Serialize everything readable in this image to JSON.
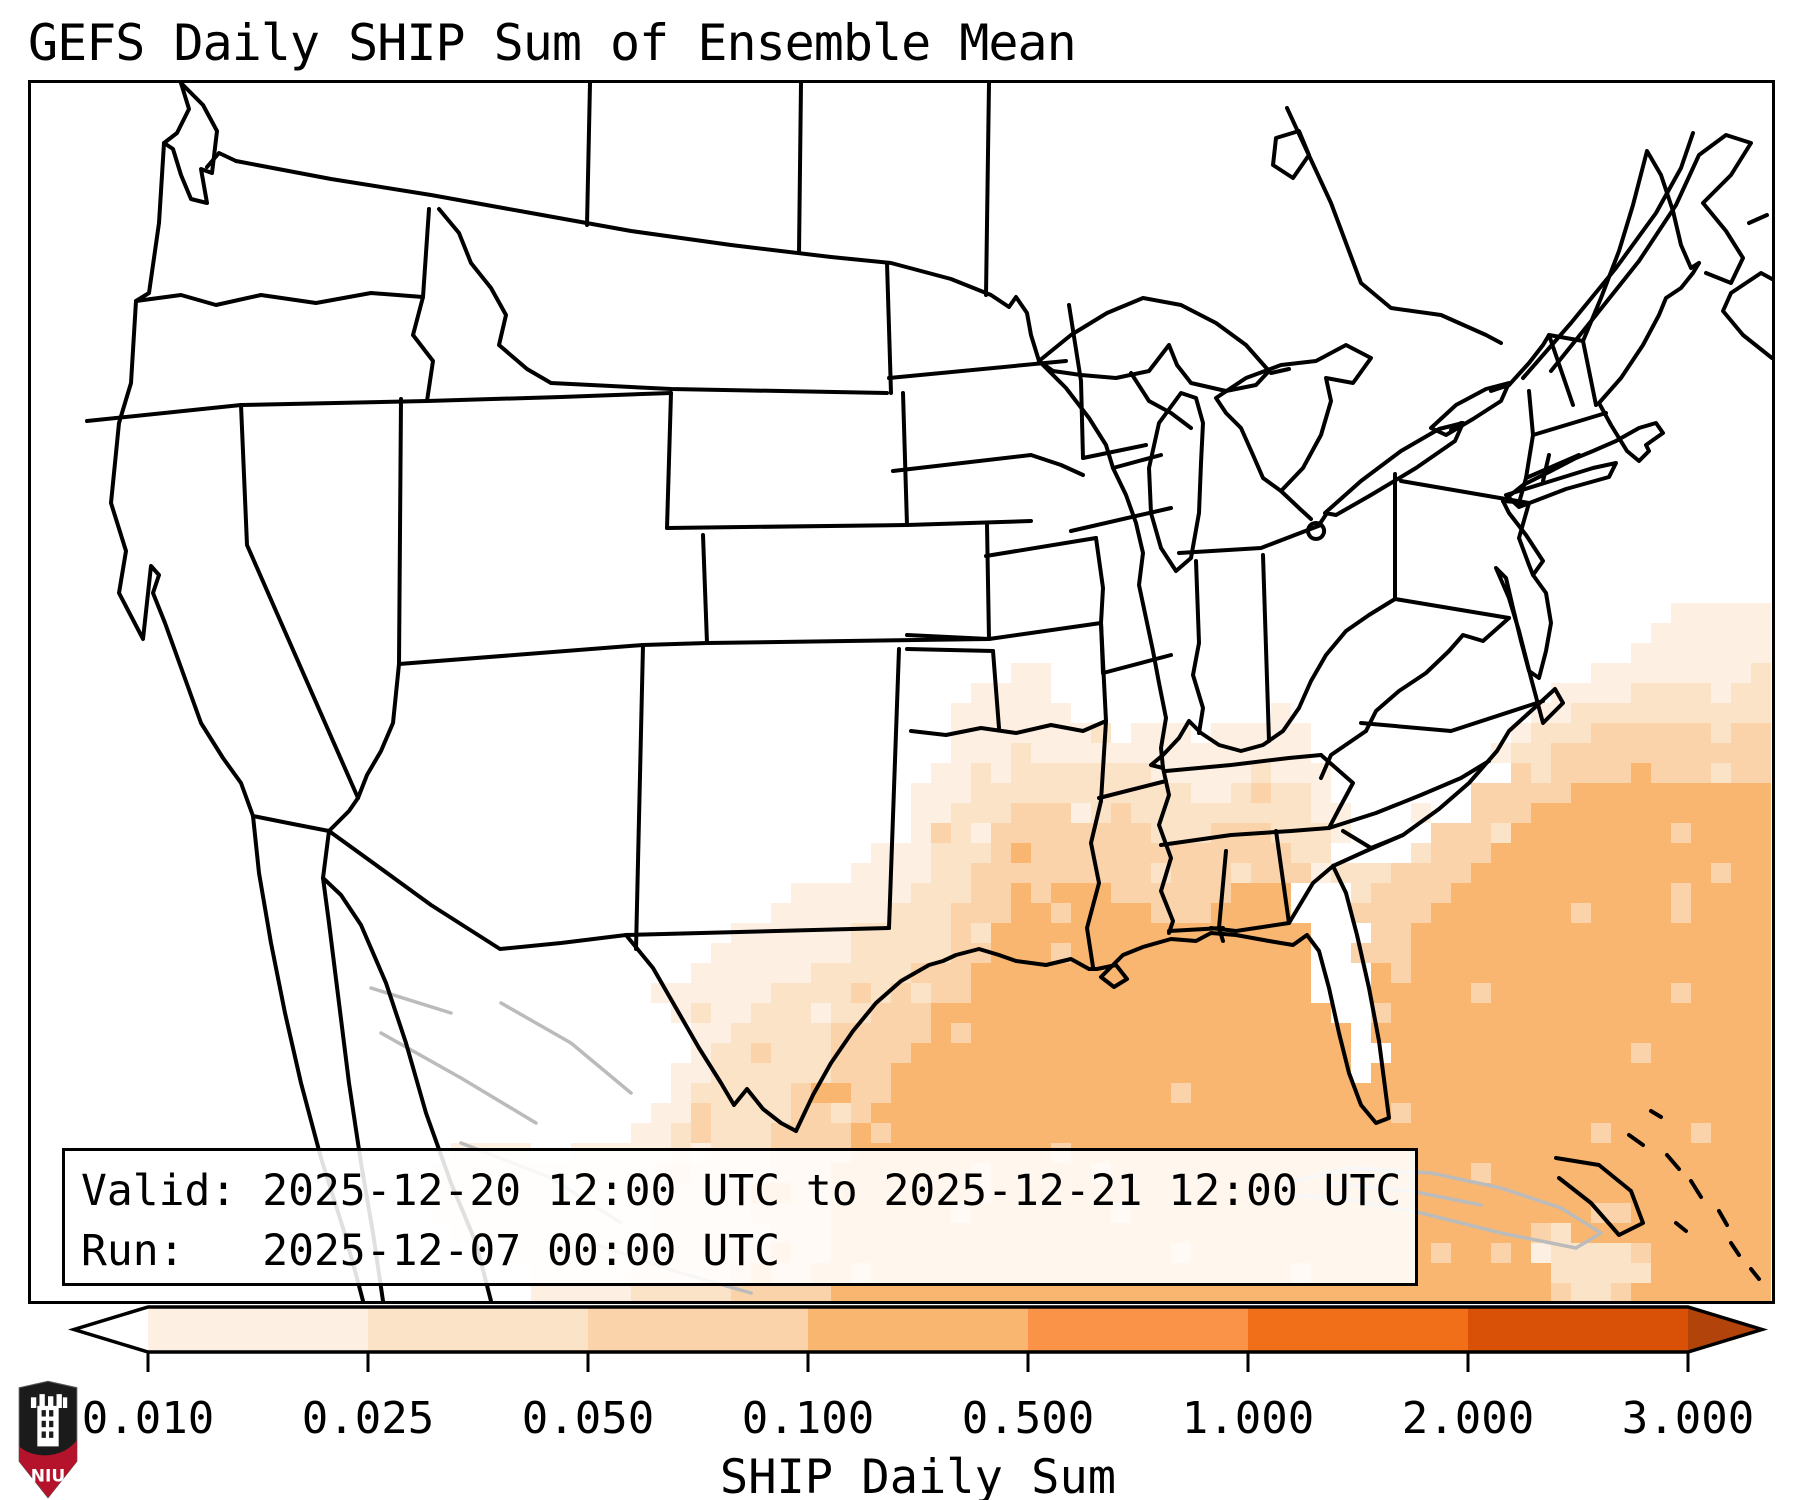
{
  "title": "GEFS Daily SHIP Sum of Ensemble Mean",
  "info_box": {
    "valid_line": "Valid: 2025-12-20 12:00 UTC to 2025-12-21 12:00 UTC",
    "run_line": "Run:   2025-12-07 00:00 UTC"
  },
  "colorbar": {
    "label": "SHIP Daily Sum",
    "tick_labels": [
      "0.010",
      "0.025",
      "0.050",
      "0.100",
      "0.500",
      "1.000",
      "2.000",
      "3.000"
    ],
    "boundaries": [
      0.01,
      0.025,
      0.05,
      0.1,
      0.5,
      1.0,
      2.0,
      3.0
    ],
    "segment_colors": [
      "#fdf0e3",
      "#fbe3c8",
      "#fad3ab",
      "#f9b671",
      "#fa9347",
      "#f26f19",
      "#d85106"
    ],
    "under_color": "#ffffff",
    "over_color": "#b2430b",
    "outline_color": "#000000",
    "extend": "both"
  },
  "map": {
    "background_color": "#ffffff",
    "border_color": "#000000",
    "foreign_line_color": "#bbbbbb",
    "level_colors": [
      "#ffffff",
      "#fdf0e3",
      "#fbe3c8",
      "#fad3ab",
      "#f9b671"
    ],
    "cell_size": 20
  },
  "logo": {
    "text": "NIU",
    "shield_color": "#1b1b1b",
    "band_color": "#b5122b",
    "castle_color": "#ffffff"
  }
}
